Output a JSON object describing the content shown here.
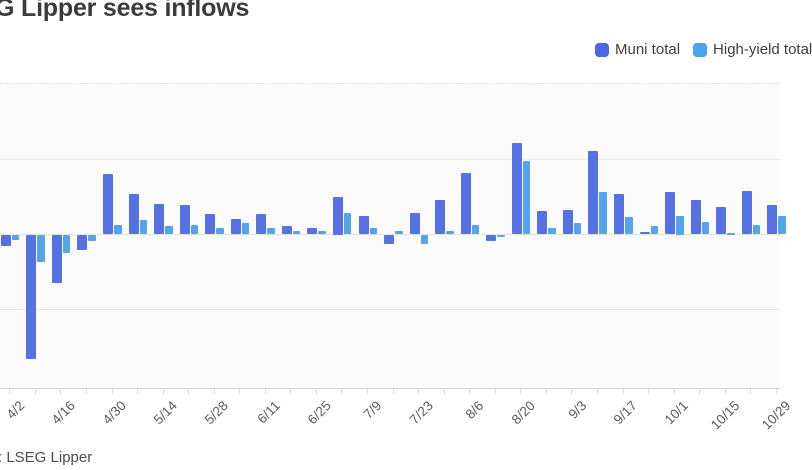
{
  "header": {
    "title": "G Lipper sees inflows"
  },
  "legend": {
    "items": [
      {
        "label": "Muni total",
        "color": "#4f68e1"
      },
      {
        "label": "High-yield total",
        "color": "#49a3ef"
      }
    ]
  },
  "footer": {
    "source": ": LSEG Lipper"
  },
  "chart_data": {
    "type": "bar",
    "title": "G Lipper sees inflows (title cropped at left edge)",
    "frequency": "weekly bars, tick labels every two weeks",
    "tick_labels": [
      "4/2",
      "4/16",
      "4/30",
      "5/14",
      "5/28",
      "6/11",
      "6/25",
      "7/9",
      "7/23",
      "8/6",
      "8/20",
      "9/3",
      "9/17",
      "10/1",
      "10/15",
      "10/29"
    ],
    "n_groups": 31,
    "series": [
      {
        "name": "Muni total",
        "color": "#5571e4",
        "values": [
          -0.15,
          -1.65,
          -0.64,
          -0.21,
          0.8,
          0.53,
          0.4,
          0.39,
          0.27,
          0.21,
          0.27,
          0.11,
          0.08,
          0.5,
          0.24,
          -0.12,
          0.28,
          0.46,
          0.82,
          -0.08,
          1.21,
          0.31,
          0.33,
          1.1,
          0.54,
          0.03,
          0.56,
          0.46,
          0.36,
          0.58,
          0.39
        ]
      },
      {
        "name": "High-yield total",
        "color": "#53a4ed",
        "values": [
          -0.07,
          -0.37,
          -0.25,
          -0.08,
          0.12,
          0.19,
          0.11,
          0.12,
          0.09,
          0.15,
          0.09,
          0.05,
          0.05,
          0.28,
          0.09,
          0.04,
          -0.12,
          0.04,
          0.12,
          -0.03,
          0.98,
          0.08,
          0.15,
          0.56,
          0.23,
          0.11,
          0.25,
          0.16,
          0.01,
          0.12,
          0.24
        ]
      }
    ],
    "ylim": [
      -2,
      2
    ],
    "grid": "4 horizontal gridlines plus zero line; top line dashed; y-axis value labels cropped out of frame",
    "legend_position": "top-right (second item clipped by right edge)",
    "units_note": "y-axis labels not visible in screenshot; values estimated in gridline units (1 unit per gridline step)"
  }
}
